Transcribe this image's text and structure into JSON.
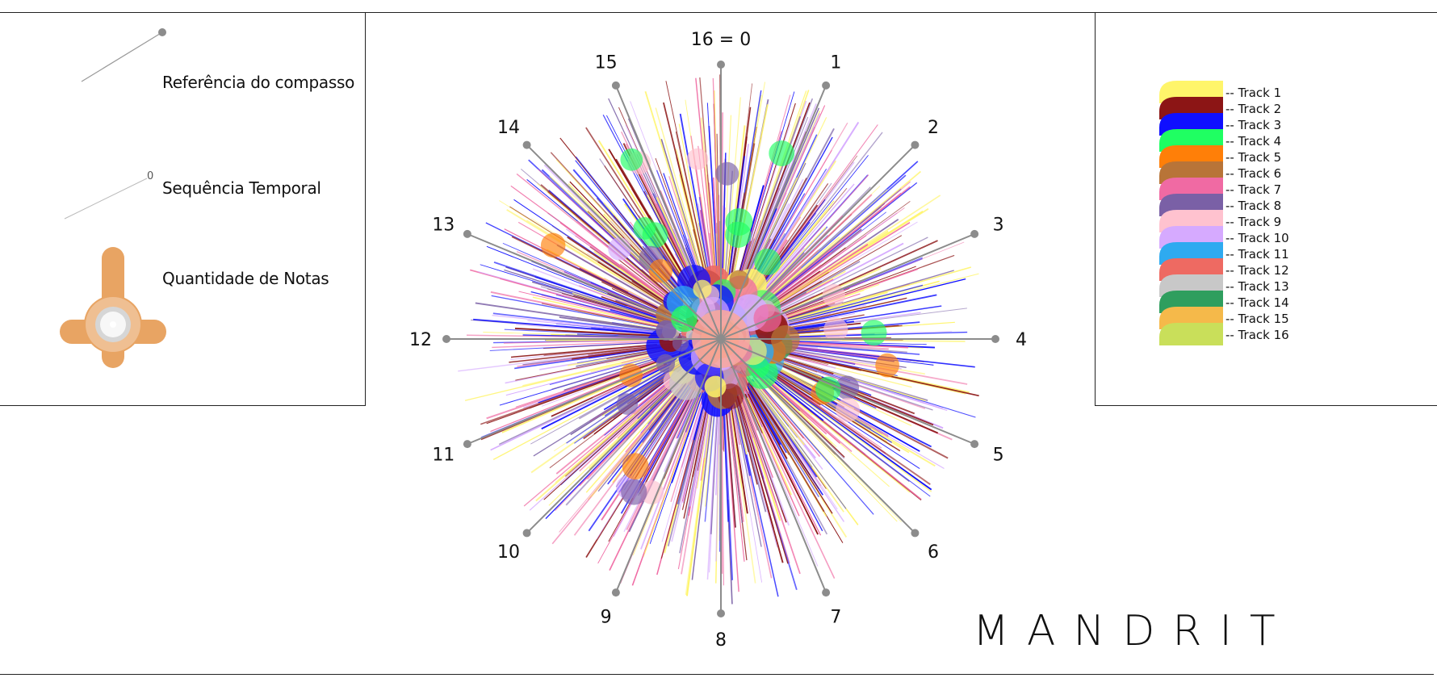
{
  "legend": {
    "compass_label": "Referência do compasso",
    "sequence_label": "Sequência Temporal",
    "sequence_marker": "0",
    "notes_label": "Quantidade de Notas",
    "note_color": "#e8a463"
  },
  "diagram": {
    "axis_labels": [
      "16 = 0",
      "1",
      "2",
      "3",
      "4",
      "5",
      "6",
      "7",
      "8",
      "9",
      "10",
      "11",
      "12",
      "13",
      "14",
      "15"
    ],
    "axis_color": "#8c8c8c"
  },
  "tracks": [
    {
      "label": "Track 1",
      "color": "#fff56a"
    },
    {
      "label": "Track 2",
      "color": "#8c1515"
    },
    {
      "label": "Track 3",
      "color": "#0f0fff"
    },
    {
      "label": "Track 4",
      "color": "#1fff62"
    },
    {
      "label": "Track 5",
      "color": "#ff7f08"
    },
    {
      "label": "Track 6",
      "color": "#b87438"
    },
    {
      "label": "Track 7",
      "color": "#f06aa3"
    },
    {
      "label": "Track 8",
      "color": "#7a60a6"
    },
    {
      "label": "Track 9",
      "color": "#ffc2cf"
    },
    {
      "label": "Track 10",
      "color": "#d6aaff"
    },
    {
      "label": "Track 11",
      "color": "#2eaaf0"
    },
    {
      "label": "Track 12",
      "color": "#ee6a62"
    },
    {
      "label": "Track 13",
      "color": "#c8c8c8"
    },
    {
      "label": "Track 14",
      "color": "#2f9e5e"
    },
    {
      "label": "Track 15",
      "color": "#f5b94a"
    },
    {
      "label": "Track 16",
      "color": "#c9df5a"
    }
  ],
  "brand": "MANDRIT"
}
